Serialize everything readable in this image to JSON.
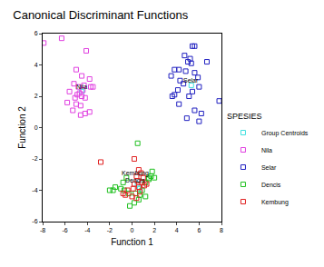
{
  "chart_data": {
    "type": "scatter",
    "title": "Canonical Discriminant Functions",
    "x_label": "Function 1",
    "y_label": "Function 2",
    "legend_title": "SPESIES",
    "legend": "right",
    "grid": false,
    "xlim": [
      -8,
      8
    ],
    "xticks": [
      -8,
      -6,
      -4,
      -2,
      0,
      2,
      4,
      6,
      8
    ],
    "ylim": [
      -6,
      6
    ],
    "yticks": [
      -6,
      -4,
      -2,
      0,
      2,
      4,
      6
    ],
    "series": [
      {
        "name": "Group Centroids",
        "color": "#40e0e0",
        "marker": "square-open",
        "x": [
          -4.5,
          5.3,
          0.7,
          0.5
        ],
        "values": [
          2.3,
          2.7,
          -3.9,
          -3.6
        ]
      },
      {
        "name": "Nila",
        "color": "#e040e0",
        "marker": "square-open",
        "x": [
          -7.9,
          -6.3,
          -4.1,
          -5.0,
          -4.5,
          -5.2,
          -4.8,
          -4.3,
          -3.5,
          -3.7,
          -5.6,
          -4.9,
          -4.5,
          -4.2,
          -5.8,
          -5.0,
          -4.6,
          -3.8,
          -4.2,
          -4.6,
          -5.3,
          -4.4,
          -4.7,
          -3.8,
          -5.1
        ],
        "values": [
          5.4,
          5.7,
          4.9,
          3.7,
          3.3,
          2.8,
          2.6,
          2.7,
          2.6,
          2.6,
          2.3,
          2.1,
          2.0,
          1.9,
          1.6,
          1.5,
          1.4,
          1.0,
          0.9,
          0.8,
          1.1,
          2.4,
          2.2,
          3.1,
          1.9
        ]
      },
      {
        "name": "Selar",
        "color": "#2020c0",
        "marker": "square-open",
        "x": [
          5.6,
          5.4,
          4.7,
          5.2,
          5.0,
          5.3,
          6.7,
          3.8,
          4.2,
          4.8,
          3.5,
          5.6,
          5.9,
          4.3,
          4.6,
          6.0,
          4.1,
          3.8,
          3.6,
          5.4,
          7.8,
          4.2,
          5.6,
          6.2,
          4.9,
          6.0,
          5.1
        ],
        "values": [
          5.2,
          5.2,
          4.6,
          4.4,
          4.2,
          4.1,
          4.2,
          3.7,
          3.7,
          3.6,
          3.3,
          3.5,
          3.2,
          3.0,
          2.8,
          2.6,
          2.4,
          2.1,
          2.0,
          2.3,
          1.7,
          1.5,
          1.1,
          0.9,
          0.6,
          0.4,
          2.0
        ]
      },
      {
        "name": "Dencis",
        "color": "#20c020",
        "marker": "square-open",
        "x": [
          0.5,
          1.8,
          1.7,
          2.0,
          1.5,
          1.2,
          -0.5,
          -0.8,
          -1.5,
          -2.0,
          -1.7,
          -0.7,
          -0.3,
          0.3,
          0.9,
          1.2,
          0.6,
          0.2,
          -0.2,
          0.7,
          1.5,
          -1.0
        ],
        "values": [
          -1.0,
          -2.8,
          -3.1,
          -3.2,
          -3.3,
          -3.5,
          -3.2,
          -3.5,
          -3.8,
          -4.0,
          -4.0,
          -4.0,
          -4.2,
          -4.2,
          -4.0,
          -4.4,
          -4.6,
          -4.8,
          -5.0,
          -4.3,
          -3.2,
          -3.9
        ]
      },
      {
        "name": "Kembung",
        "color": "#e02020",
        "marker": "square-open",
        "x": [
          -2.8,
          0.2,
          0.6,
          0.8,
          0.4,
          1.0,
          0.5,
          0.2,
          0.9,
          1.3,
          0.6,
          0.1,
          -0.4,
          -0.6,
          0.0,
          1.1,
          0.7,
          -0.8,
          0.4
        ],
        "values": [
          -2.2,
          -2.0,
          -2.7,
          -2.9,
          -3.1,
          -3.2,
          -3.4,
          -3.6,
          -3.5,
          -3.6,
          -3.8,
          -3.9,
          -4.0,
          -4.3,
          -4.4,
          -3.7,
          -4.1,
          -4.2,
          -4.5
        ]
      }
    ],
    "annotations": [
      {
        "text": "Nila",
        "x": -4.5,
        "y": 2.6
      },
      {
        "text": "Selar",
        "x": 5.3,
        "y": 3.0
      },
      {
        "text": "Kembung",
        "x": 0.3,
        "y": -2.9
      },
      {
        "text": "Dencis",
        "x": 0.3,
        "y": -3.35
      }
    ]
  }
}
